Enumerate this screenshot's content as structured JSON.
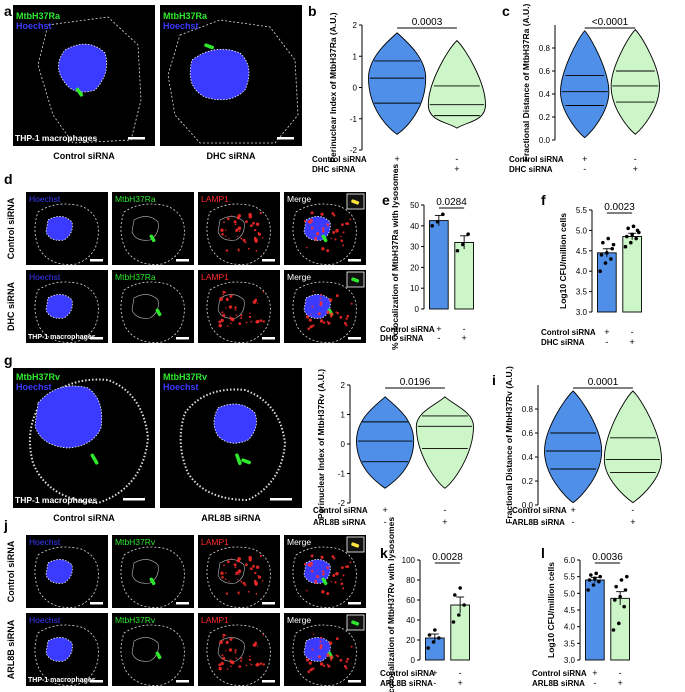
{
  "panel_letters": [
    "a",
    "b",
    "c",
    "d",
    "e",
    "f",
    "g",
    "h",
    "i",
    "j",
    "k",
    "l"
  ],
  "micrographs": {
    "a": {
      "channels": [
        "MtbH37Ra",
        "Hoechst"
      ],
      "cell_line": "THP-1 macrophages",
      "conditions": [
        "Control siRNA",
        "DHC siRNA"
      ]
    },
    "d": {
      "channels": [
        "Hoechst",
        "MtbH37Ra",
        "LAMP1",
        "Merge"
      ],
      "row_labels": [
        "Control siRNA",
        "DHC siRNA"
      ],
      "cell_line": "THP-1 macrophages"
    },
    "g": {
      "channels": [
        "MtbH37Rv",
        "Hoechst"
      ],
      "cell_line": "THP-1 macrophages",
      "conditions": [
        "Control siRNA",
        "ARL8B siRNA"
      ]
    },
    "j": {
      "channels": [
        "Hoechst",
        "MtbH37Rv",
        "LAMP1",
        "Merge"
      ],
      "row_labels": [
        "Control siRNA",
        "ARL8B siRNA"
      ],
      "cell_line": "THP-1 macrophages"
    }
  },
  "colors": {
    "control": "#4f8fe8",
    "treatment": "#ccf5c8",
    "hoechst": "#3b3bff",
    "mtb": "#2ee82e",
    "lamp1": "#ff2a2a"
  },
  "chart_data": [
    {
      "panel": "b",
      "type": "violin",
      "ylabel": "Perinuclear Index of MtbH37Ra (A.U.)",
      "ylim": [
        -2,
        2
      ],
      "yticks": [
        "-2",
        "-1",
        "0",
        "1",
        "2"
      ],
      "groups": [
        "Control siRNA",
        "DHC siRNA"
      ],
      "pvalue": "0.0003",
      "rows": [
        {
          "label": "Control siRNA",
          "marks": [
            "+",
            "-"
          ]
        },
        {
          "label": "DHC siRNA",
          "marks": [
            "-",
            "+"
          ]
        }
      ],
      "series": [
        {
          "min": -1.5,
          "max": 1.75,
          "q1": -0.5,
          "median": 0.3,
          "q3": 0.85
        },
        {
          "min": -1.3,
          "max": 1.5,
          "q1": -0.9,
          "median": -0.55,
          "q3": 0.05
        }
      ]
    },
    {
      "panel": "c",
      "type": "violin",
      "ylabel": "Fractional Distance of MtbH37Ra (A.U.)",
      "ylim": [
        0,
        1
      ],
      "yticks": [
        "0.0",
        "0.2",
        "0.4",
        "0.6",
        "0.8"
      ],
      "groups": [
        "Control siRNA",
        "DHC siRNA"
      ],
      "pvalue": "<0.0001",
      "rows": [
        {
          "label": "Control siRNA",
          "marks": [
            "+",
            "-"
          ]
        },
        {
          "label": "DHC siRNA",
          "marks": [
            "-",
            "+"
          ]
        }
      ],
      "series": [
        {
          "min": 0.02,
          "max": 0.95,
          "q1": 0.3,
          "median": 0.42,
          "q3": 0.56
        },
        {
          "min": 0.05,
          "max": 0.96,
          "q1": 0.33,
          "median": 0.47,
          "q3": 0.6
        }
      ]
    },
    {
      "panel": "e",
      "type": "bar",
      "ylabel": "% colocalization of MtbH37Ra with lysosomes",
      "ylim": [
        0,
        50
      ],
      "yticks": [
        "0",
        "10",
        "20",
        "30",
        "40",
        "50"
      ],
      "groups": [
        "Control siRNA",
        "DHC siRNA"
      ],
      "pvalue": "0.0284",
      "rows": [
        {
          "label": "Control siRNA",
          "marks": [
            "+",
            "-"
          ]
        },
        {
          "label": "DHC siRNA",
          "marks": [
            "-",
            "+"
          ]
        }
      ],
      "series": [
        {
          "mean": 42.5,
          "err": 2.5,
          "points": [
            40,
            42,
            45.5
          ]
        },
        {
          "mean": 32,
          "err": 3.2,
          "points": [
            28,
            31,
            36
          ]
        }
      ]
    },
    {
      "panel": "f",
      "type": "bar",
      "ylabel": "Log10 CFU/million cells",
      "ylim": [
        3,
        5.5
      ],
      "yticks": [
        "3.0",
        "3.5",
        "4.0",
        "4.5",
        "5.0",
        "5.5"
      ],
      "groups": [
        "Control siRNA",
        "DHC siRNA"
      ],
      "pvalue": "0.0023",
      "rows": [
        {
          "label": "Control siRNA",
          "marks": [
            "+",
            "-"
          ]
        },
        {
          "label": "DHC siRNA",
          "marks": [
            "-",
            "+"
          ]
        }
      ],
      "series": [
        {
          "mean": 4.45,
          "err": 0.1,
          "points": [
            4.0,
            4.2,
            4.3,
            4.4,
            4.45,
            4.55,
            4.7,
            4.8,
            4.65
          ]
        },
        {
          "mean": 4.85,
          "err": 0.08,
          "points": [
            4.6,
            4.7,
            4.8,
            4.85,
            4.9,
            5.0,
            5.05,
            5.1,
            4.95
          ]
        }
      ]
    },
    {
      "panel": "h",
      "type": "violin",
      "ylabel": "Perinuclear Index of MtbH37Rv (A.U.)",
      "ylim": [
        -2,
        2
      ],
      "yticks": [
        "-2",
        "-1",
        "0",
        "1",
        "2"
      ],
      "groups": [
        "Control siRNA",
        "ARL8B siRNA"
      ],
      "pvalue": "0.0196",
      "rows": [
        {
          "label": "Control siRNA",
          "marks": [
            "+",
            "-"
          ]
        },
        {
          "label": "ARL8B siRNA",
          "marks": [
            "-",
            "+"
          ]
        }
      ],
      "series": [
        {
          "min": -1.5,
          "max": 1.6,
          "q1": -0.6,
          "median": 0.1,
          "q3": 0.75
        },
        {
          "min": -1.5,
          "max": 1.6,
          "q1": -0.15,
          "median": 0.6,
          "q3": 0.95
        }
      ]
    },
    {
      "panel": "i",
      "type": "violin",
      "ylabel": "Fractional Distance of MtbH37Rv (A.U.)",
      "ylim": [
        0,
        1
      ],
      "yticks": [
        "0.0",
        "0.2",
        "0.4",
        "0.6",
        "0.8"
      ],
      "groups": [
        "Control siRNA",
        "ARL8B siRNA"
      ],
      "pvalue": "0.0001",
      "rows": [
        {
          "label": "Control siRNA",
          "marks": [
            "+",
            "-"
          ]
        },
        {
          "label": "ARL8B siRNA",
          "marks": [
            "-",
            "+"
          ]
        }
      ],
      "series": [
        {
          "min": 0.02,
          "max": 0.95,
          "q1": 0.3,
          "median": 0.45,
          "q3": 0.6
        },
        {
          "min": 0.02,
          "max": 0.95,
          "q1": 0.27,
          "median": 0.38,
          "q3": 0.56
        }
      ]
    },
    {
      "panel": "k",
      "type": "bar",
      "ylabel": "% colocalization of MtbH37Rv with lysosomes",
      "ylim": [
        0,
        100
      ],
      "yticks": [
        "0",
        "20",
        "40",
        "60",
        "80",
        "100"
      ],
      "groups": [
        "Control siRNA",
        "ARL8B siRNA"
      ],
      "pvalue": "0.0028",
      "rows": [
        {
          "label": "Control siRNA",
          "marks": [
            "+",
            "-"
          ]
        },
        {
          "label": "ARL8B siRNA",
          "marks": [
            "-",
            "+"
          ]
        }
      ],
      "series": [
        {
          "mean": 22,
          "err": 4,
          "points": [
            12,
            18,
            22,
            25,
            30
          ]
        },
        {
          "mean": 55,
          "err": 8,
          "points": [
            38,
            45,
            55,
            65,
            72
          ]
        }
      ]
    },
    {
      "panel": "l",
      "type": "bar",
      "ylabel": "Log10 CFU/million cells",
      "ylim": [
        3,
        6
      ],
      "yticks": [
        "3.0",
        "3.5",
        "4.0",
        "4.5",
        "5.0",
        "5.5",
        "6.0"
      ],
      "groups": [
        "Control siRNA",
        "ARL8B siRNA"
      ],
      "pvalue": "0.0036",
      "rows": [
        {
          "label": "Control siRNA",
          "marks": [
            "+",
            "-"
          ]
        },
        {
          "label": "ARL8B siRNA",
          "marks": [
            "-",
            "+"
          ]
        }
      ],
      "series": [
        {
          "mean": 5.4,
          "err": 0.08,
          "points": [
            5.1,
            5.25,
            5.35,
            5.4,
            5.45,
            5.5,
            5.55,
            5.6
          ]
        },
        {
          "mean": 4.85,
          "err": 0.2,
          "points": [
            3.9,
            4.1,
            4.6,
            4.8,
            4.9,
            5.1,
            5.2,
            5.4,
            5.5
          ]
        }
      ]
    }
  ]
}
